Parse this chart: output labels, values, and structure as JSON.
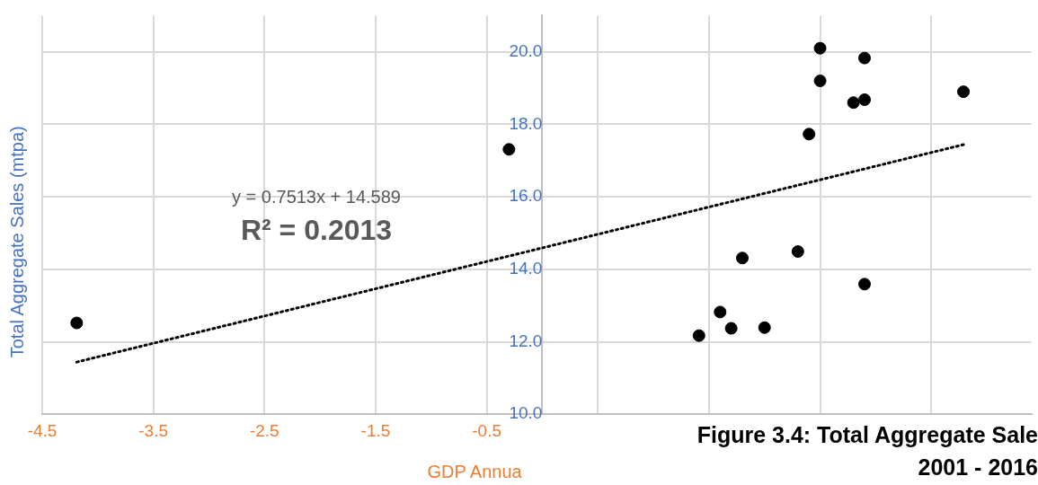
{
  "chart_data": {
    "type": "scatter",
    "title": "Figure 3.4: Total Aggregate Sale",
    "subtitle": "2001 - 2016",
    "xlabel": "GDP Annua",
    "ylabel": "Total Aggregate Sales (mtpa)",
    "annotations": [
      "y = 0.7513x + 14.589",
      "R² = 0.2013"
    ],
    "series": [
      {
        "color": "#000000",
        "marker": "circle",
        "x": [
          -4.19,
          -0.3,
          1.41,
          1.6,
          1.7,
          1.8,
          2.0,
          2.3,
          2.4,
          2.5,
          2.5,
          2.8,
          2.9,
          2.9,
          2.9,
          3.79
        ],
        "values": [
          12.52,
          17.31,
          12.17,
          12.82,
          12.37,
          14.31,
          12.39,
          14.49,
          17.73,
          20.1,
          19.2,
          18.6,
          19.83,
          18.68,
          13.59,
          18.9
        ]
      },
      {
        "type": "line",
        "color": "#000000",
        "line_style": "dotted",
        "marker": "none",
        "x": [
          -4.19,
          3.79
        ],
        "values": [
          11.44,
          17.44
        ]
      }
    ],
    "xlim": [
      -4.5,
      4.4
    ],
    "xticks": [
      -4.5,
      -3.5,
      -2.5,
      -1.5,
      -0.5,
      {
        "value": 0.5,
        "label": null
      },
      {
        "value": 1.5,
        "label": null
      },
      {
        "value": 2.5,
        "label": null
      },
      {
        "value": 3.5,
        "label": null
      }
    ],
    "ylim": [
      10,
      21
    ],
    "yticks": [
      {
        "value": 10,
        "label": "10.0"
      },
      {
        "value": 12,
        "label": "12.0"
      },
      {
        "value": 14,
        "label": "14.0"
      },
      {
        "value": 16,
        "label": "16.0"
      },
      {
        "value": 18,
        "label": "18.0"
      },
      {
        "value": 20,
        "label": "20.0"
      }
    ],
    "grid": true,
    "legend": false
  }
}
